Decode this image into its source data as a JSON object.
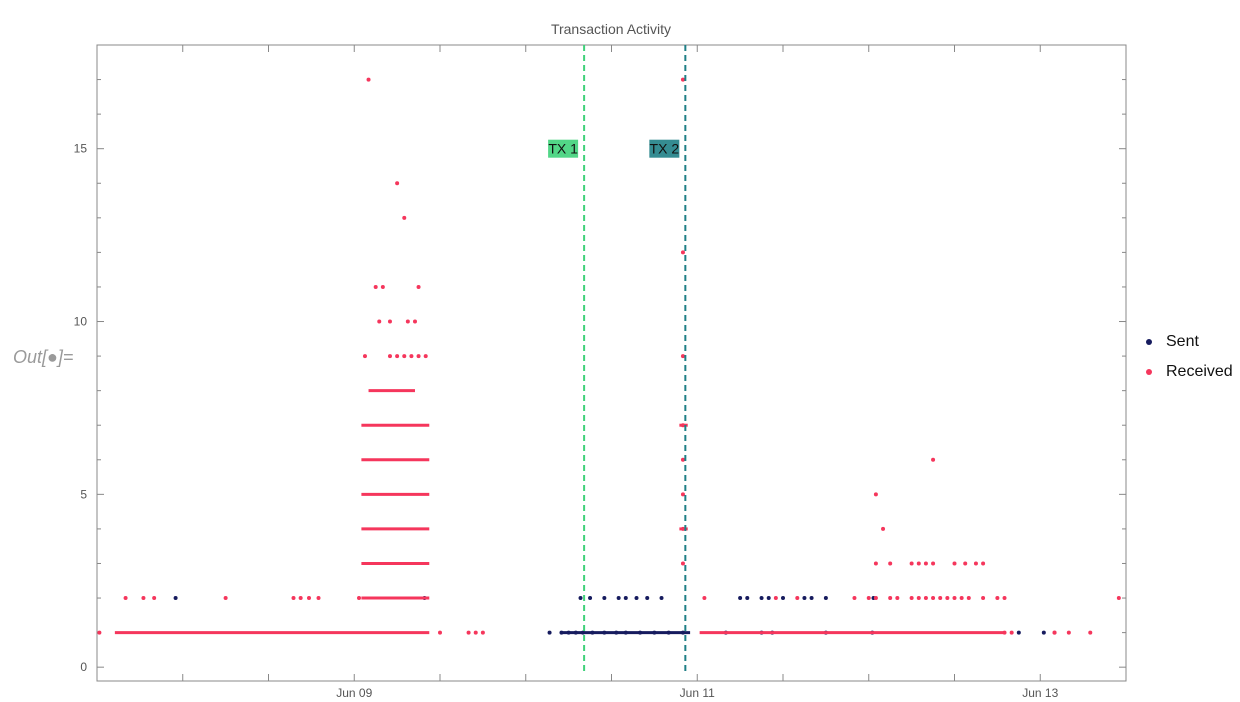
{
  "out_label": "Out[●]=",
  "chart_data": {
    "type": "scatter",
    "title": "Transaction Activity",
    "xlabel": "",
    "ylabel": "",
    "x_axis": "date",
    "xlim": [
      "2024-06-07T12:00",
      "2024-06-13T12:00"
    ],
    "ylim": [
      -0.4,
      18.0
    ],
    "xticks": [
      "Jun 09",
      "Jun 11",
      "Jun 13"
    ],
    "yticks": [
      0,
      5,
      10,
      15
    ],
    "grid": false,
    "legend_position": "right",
    "annotations": [
      {
        "label": "TX 1",
        "x": "2024-06-10T08:10",
        "color": "#3fd17a"
      },
      {
        "label": "TX 2",
        "x": "2024-06-10T22:20",
        "color": "#1f7f86"
      }
    ],
    "series": [
      {
        "name": "Sent",
        "color": "#161b5e",
        "points": [
          [
            "2024-06-07T23:00",
            2
          ],
          [
            "2024-06-09T09:50",
            2
          ],
          [
            "2024-06-10T03:20",
            1
          ],
          [
            "2024-06-10T05:00",
            1
          ],
          [
            "2024-06-10T06:00",
            1
          ],
          [
            "2024-06-10T07:00",
            1
          ],
          [
            "2024-06-10T08:00",
            1
          ],
          [
            "2024-06-10T09:20",
            1
          ],
          [
            "2024-06-10T11:00",
            1
          ],
          [
            "2024-06-10T12:40",
            1
          ],
          [
            "2024-06-10T14:00",
            1
          ],
          [
            "2024-06-10T16:00",
            1
          ],
          [
            "2024-06-10T18:00",
            1
          ],
          [
            "2024-06-10T20:00",
            1
          ],
          [
            "2024-06-10T22:00",
            1
          ],
          [
            "2024-06-11T04:00",
            1
          ],
          [
            "2024-06-11T09:00",
            1
          ],
          [
            "2024-06-11T10:30",
            1
          ],
          [
            "2024-06-11T18:00",
            1
          ],
          [
            "2024-06-12T00:30",
            1
          ],
          [
            "2024-06-12T21:00",
            1
          ],
          [
            "2024-06-13T00:30",
            1
          ],
          [
            "2024-06-10T07:40",
            2
          ],
          [
            "2024-06-10T09:00",
            2
          ],
          [
            "2024-06-10T11:00",
            2
          ],
          [
            "2024-06-10T13:00",
            2
          ],
          [
            "2024-06-10T14:00",
            2
          ],
          [
            "2024-06-10T15:30",
            2
          ],
          [
            "2024-06-10T17:00",
            2
          ],
          [
            "2024-06-10T19:00",
            2
          ],
          [
            "2024-06-11T06:00",
            2
          ],
          [
            "2024-06-11T07:00",
            2
          ],
          [
            "2024-06-11T09:00",
            2
          ],
          [
            "2024-06-11T10:00",
            2
          ],
          [
            "2024-06-11T12:00",
            2
          ],
          [
            "2024-06-11T15:00",
            2
          ],
          [
            "2024-06-11T16:00",
            2
          ],
          [
            "2024-06-11T18:00",
            2
          ],
          [
            "2024-06-12T00:40",
            2
          ]
        ],
        "segments": [
          [
            "2024-06-10T05:00",
            "2024-06-10T23:00",
            1
          ]
        ]
      },
      {
        "name": "Received",
        "color": "#f5365c",
        "points": [
          [
            "2024-06-07T12:20",
            1
          ],
          [
            "2024-06-07T16:00",
            2
          ],
          [
            "2024-06-07T18:30",
            2
          ],
          [
            "2024-06-07T20:00",
            2
          ],
          [
            "2024-06-08T06:00",
            2
          ],
          [
            "2024-06-08T15:30",
            2
          ],
          [
            "2024-06-08T16:30",
            2
          ],
          [
            "2024-06-08T17:40",
            2
          ],
          [
            "2024-06-08T19:00",
            2
          ],
          [
            "2024-06-09T00:40",
            2
          ],
          [
            "2024-06-09T02:00",
            17
          ],
          [
            "2024-06-09T06:00",
            14
          ],
          [
            "2024-06-09T07:00",
            13
          ],
          [
            "2024-06-09T03:00",
            11
          ],
          [
            "2024-06-09T04:00",
            11
          ],
          [
            "2024-06-09T09:00",
            11
          ],
          [
            "2024-06-09T03:30",
            10
          ],
          [
            "2024-06-09T05:00",
            10
          ],
          [
            "2024-06-09T07:30",
            10
          ],
          [
            "2024-06-09T08:30",
            10
          ],
          [
            "2024-06-09T01:30",
            9
          ],
          [
            "2024-06-09T05:00",
            9
          ],
          [
            "2024-06-09T06:00",
            9
          ],
          [
            "2024-06-09T07:00",
            9
          ],
          [
            "2024-06-09T08:00",
            9
          ],
          [
            "2024-06-09T09:00",
            9
          ],
          [
            "2024-06-09T10:00",
            9
          ],
          [
            "2024-06-09T12:00",
            1
          ],
          [
            "2024-06-09T16:00",
            1
          ],
          [
            "2024-06-09T17:00",
            1
          ],
          [
            "2024-06-09T18:00",
            1
          ],
          [
            "2024-06-10T22:00",
            17
          ],
          [
            "2024-06-10T22:00",
            12
          ],
          [
            "2024-06-10T22:00",
            9
          ],
          [
            "2024-06-10T22:00",
            6
          ],
          [
            "2024-06-10T22:00",
            5
          ],
          [
            "2024-06-10T22:00",
            4
          ],
          [
            "2024-06-10T22:00",
            3
          ],
          [
            "2024-06-10T22:00",
            7
          ],
          [
            "2024-06-11T01:00",
            2
          ],
          [
            "2024-06-11T11:00",
            2
          ],
          [
            "2024-06-11T14:00",
            2
          ],
          [
            "2024-06-12T01:00",
            5
          ],
          [
            "2024-06-12T02:00",
            4
          ],
          [
            "2024-06-12T09:00",
            6
          ],
          [
            "2024-06-12T01:00",
            3
          ],
          [
            "2024-06-12T03:00",
            3
          ],
          [
            "2024-06-12T06:00",
            3
          ],
          [
            "2024-06-12T07:00",
            3
          ],
          [
            "2024-06-12T08:00",
            3
          ],
          [
            "2024-06-12T09:00",
            3
          ],
          [
            "2024-06-12T12:00",
            3
          ],
          [
            "2024-06-12T13:30",
            3
          ],
          [
            "2024-06-12T15:00",
            3
          ],
          [
            "2024-06-12T16:00",
            3
          ],
          [
            "2024-06-11T22:00",
            2
          ],
          [
            "2024-06-12T00:00",
            2
          ],
          [
            "2024-06-12T01:00",
            2
          ],
          [
            "2024-06-12T03:00",
            2
          ],
          [
            "2024-06-12T04:00",
            2
          ],
          [
            "2024-06-12T06:00",
            2
          ],
          [
            "2024-06-12T07:00",
            2
          ],
          [
            "2024-06-12T08:00",
            2
          ],
          [
            "2024-06-12T09:00",
            2
          ],
          [
            "2024-06-12T10:00",
            2
          ],
          [
            "2024-06-12T11:00",
            2
          ],
          [
            "2024-06-12T12:00",
            2
          ],
          [
            "2024-06-12T13:00",
            2
          ],
          [
            "2024-06-12T14:00",
            2
          ],
          [
            "2024-06-12T16:00",
            2
          ],
          [
            "2024-06-12T18:00",
            2
          ],
          [
            "2024-06-12T19:00",
            2
          ],
          [
            "2024-06-12T19:00",
            1
          ],
          [
            "2024-06-12T20:00",
            1
          ],
          [
            "2024-06-13T02:00",
            1
          ],
          [
            "2024-06-13T07:00",
            1
          ],
          [
            "2024-06-13T02:00",
            1
          ],
          [
            "2024-06-13T04:00",
            1
          ],
          [
            "2024-06-13T11:00",
            2
          ]
        ],
        "segments": [
          [
            "2024-06-07T14:30",
            "2024-06-09T10:30",
            1
          ],
          [
            "2024-06-09T01:00",
            "2024-06-09T10:30",
            2
          ],
          [
            "2024-06-09T01:00",
            "2024-06-09T10:30",
            3
          ],
          [
            "2024-06-09T01:00",
            "2024-06-09T10:30",
            4
          ],
          [
            "2024-06-09T01:00",
            "2024-06-09T10:30",
            5
          ],
          [
            "2024-06-09T01:00",
            "2024-06-09T10:30",
            6
          ],
          [
            "2024-06-09T01:00",
            "2024-06-09T10:30",
            7
          ],
          [
            "2024-06-09T02:00",
            "2024-06-09T08:30",
            8
          ],
          [
            "2024-06-11T00:20",
            "2024-06-12T19:00",
            1
          ],
          [
            "2024-06-10T21:30",
            "2024-06-10T22:40",
            4
          ],
          [
            "2024-06-10T21:30",
            "2024-06-10T22:40",
            7
          ]
        ]
      }
    ]
  }
}
